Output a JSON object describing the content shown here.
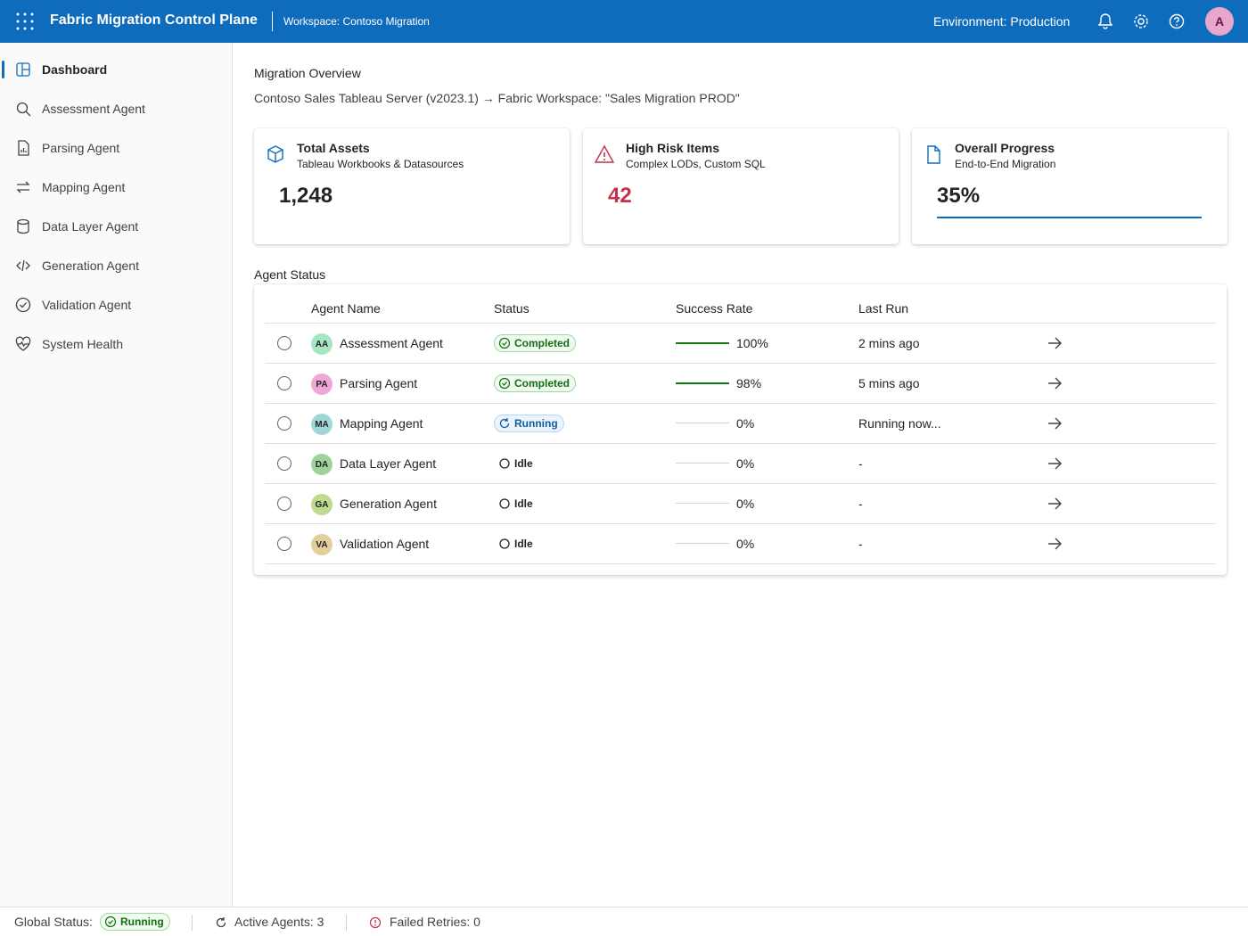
{
  "header": {
    "title": "Fabric Migration Control Plane",
    "workspace": "Workspace: Contoso Migration",
    "environment": "Environment: Production",
    "avatar": "A"
  },
  "nav": [
    {
      "label": "Dashboard",
      "active": true
    },
    {
      "label": "Assessment Agent",
      "active": false
    },
    {
      "label": "Parsing Agent",
      "active": false
    },
    {
      "label": "Mapping Agent",
      "active": false
    },
    {
      "label": "Data Layer Agent",
      "active": false
    },
    {
      "label": "Generation Agent",
      "active": false
    },
    {
      "label": "Validation Agent",
      "active": false
    },
    {
      "label": "System Health",
      "active": false
    }
  ],
  "overview": {
    "heading": "Migration Overview",
    "subtitle": "Contoso Sales Tableau Server (v2023.1) → Fabric Workspace: \"Sales Migration PROD\""
  },
  "cards": [
    {
      "title": "Total Assets",
      "subtitle": "Tableau Workbooks & Datasources",
      "value": "1,248",
      "color": "#242424"
    },
    {
      "title": "High Risk Items",
      "subtitle": "Complex LODs, Custom SQL",
      "value": "42",
      "color": "#c4314b"
    },
    {
      "title": "Overall Progress",
      "subtitle": "End-to-End Migration",
      "value": "35%",
      "color": "#242424"
    }
  ],
  "agent_status": {
    "title": "Agent Status",
    "columns": [
      "Agent Name",
      "Status",
      "Success Rate",
      "Last Run"
    ],
    "rows": [
      {
        "initials": "AA",
        "name": "Assessment Agent",
        "status": "Completed",
        "success_rate": "100%",
        "last_run": "2 mins ago",
        "color": "#a8e6c1"
      },
      {
        "initials": "PA",
        "name": "Parsing Agent",
        "status": "Completed",
        "success_rate": "98%",
        "last_run": "5 mins ago",
        "color": "#eea8d6"
      },
      {
        "initials": "MA",
        "name": "Mapping Agent",
        "status": "Running",
        "success_rate": "0%",
        "last_run": "Running now...",
        "color": "#9fd6d8"
      },
      {
        "initials": "DA",
        "name": "Data Layer Agent",
        "status": "Idle",
        "success_rate": "0%",
        "last_run": "-",
        "color": "#9ed49a"
      },
      {
        "initials": "GA",
        "name": "Generation Agent",
        "status": "Idle",
        "success_rate": "0%",
        "last_run": "-",
        "color": "#bfd98f"
      },
      {
        "initials": "VA",
        "name": "Validation Agent",
        "status": "Idle",
        "success_rate": "0%",
        "last_run": "-",
        "color": "#e3cf9c"
      }
    ]
  },
  "footer": {
    "global_status_label": "Global Status:",
    "global_status": "Running",
    "active_agents": "Active Agents: 3",
    "failed_retries": "Failed Retries: 0"
  }
}
